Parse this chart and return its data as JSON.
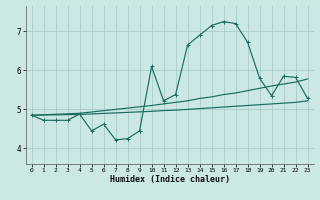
{
  "xlabel": "Humidex (Indice chaleur)",
  "background_color": "#cce8e4",
  "grid_color": "#aaccc8",
  "line_color": "#1a6b60",
  "x_ticks": [
    0,
    1,
    2,
    3,
    4,
    5,
    6,
    7,
    8,
    9,
    10,
    11,
    12,
    13,
    14,
    15,
    16,
    17,
    18,
    19,
    20,
    21,
    22,
    23
  ],
  "y_ticks": [
    4,
    5,
    6,
    7
  ],
  "ylim": [
    3.6,
    7.65
  ],
  "xlim": [
    -0.5,
    23.5
  ],
  "curve_x": [
    0,
    1,
    2,
    3,
    4,
    5,
    6,
    7,
    8,
    9,
    10,
    11,
    12,
    13,
    14,
    15,
    16,
    17,
    18,
    19,
    20,
    21,
    22,
    23
  ],
  "curve_y": [
    4.85,
    4.72,
    4.72,
    4.72,
    4.88,
    4.45,
    4.62,
    4.22,
    4.25,
    4.45,
    6.1,
    5.22,
    5.38,
    6.65,
    6.9,
    7.15,
    7.25,
    7.2,
    6.72,
    5.8,
    5.35,
    5.85,
    5.82,
    5.28
  ],
  "upper_x": [
    0,
    4,
    10,
    11,
    12,
    13,
    14,
    15,
    16,
    17,
    18,
    19,
    20,
    21,
    22,
    23
  ],
  "upper_y": [
    4.85,
    4.9,
    5.1,
    5.14,
    5.18,
    5.22,
    5.28,
    5.32,
    5.38,
    5.42,
    5.48,
    5.54,
    5.6,
    5.65,
    5.7,
    5.78
  ],
  "lower_x": [
    0,
    4,
    10,
    11,
    12,
    13,
    14,
    15,
    16,
    17,
    18,
    19,
    20,
    21,
    22,
    23
  ],
  "lower_y": [
    4.85,
    4.87,
    4.95,
    4.97,
    4.98,
    5.0,
    5.02,
    5.04,
    5.06,
    5.08,
    5.1,
    5.12,
    5.14,
    5.16,
    5.18,
    5.22
  ]
}
